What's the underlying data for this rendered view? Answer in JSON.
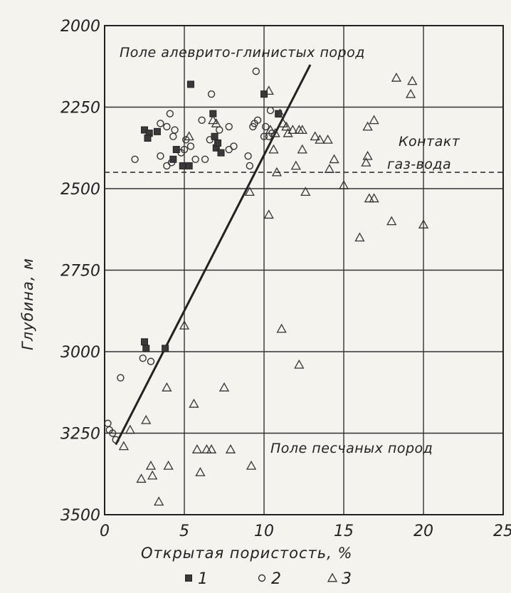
{
  "chart_data": {
    "type": "scatter",
    "title": "",
    "xlabel": "Открытая пористость, %",
    "ylabel": "Глубина, м",
    "xlim": [
      0,
      25
    ],
    "ylim": [
      3500,
      2000
    ],
    "y_inverted": true,
    "xticks": [
      0,
      5,
      10,
      15,
      20,
      25
    ],
    "yticks": [
      2000,
      2250,
      2500,
      2750,
      3000,
      3250,
      3500
    ],
    "grid": true,
    "annotations": {
      "upper_field": "Поле алеврито-глинистых пород",
      "contact_line1": "Контакт",
      "contact_line2": "газ-вода",
      "lower_field": "Поле песчаных пород"
    },
    "contact_depth": 2450,
    "trend_line": {
      "x": [
        0.7,
        12.9
      ],
      "y": [
        3285,
        2120
      ]
    },
    "legend": [
      {
        "label": "1",
        "marker": "filled-square"
      },
      {
        "label": "2",
        "marker": "open-circle"
      },
      {
        "label": "3",
        "marker": "open-triangle"
      }
    ],
    "series": [
      {
        "name": "1",
        "marker": "filled-square",
        "points": [
          [
            5.4,
            2180
          ],
          [
            2.5,
            2320
          ],
          [
            2.8,
            2330
          ],
          [
            3.3,
            2325
          ],
          [
            2.7,
            2345
          ],
          [
            4.5,
            2380
          ],
          [
            4.3,
            2410
          ],
          [
            4.9,
            2430
          ],
          [
            5.3,
            2430
          ],
          [
            6.8,
            2270
          ],
          [
            6.9,
            2340
          ],
          [
            7.0,
            2375
          ],
          [
            7.3,
            2390
          ],
          [
            7.1,
            2360
          ],
          [
            10.0,
            2210
          ],
          [
            10.9,
            2270
          ],
          [
            2.5,
            2970
          ],
          [
            2.6,
            2990
          ],
          [
            3.8,
            2990
          ]
        ]
      },
      {
        "name": "2",
        "marker": "open-circle",
        "points": [
          [
            9.5,
            2140
          ],
          [
            6.7,
            2210
          ],
          [
            3.5,
            2300
          ],
          [
            4.1,
            2270
          ],
          [
            3.9,
            2310
          ],
          [
            4.3,
            2340
          ],
          [
            4.4,
            2320
          ],
          [
            3.5,
            2400
          ],
          [
            3.9,
            2430
          ],
          [
            4.2,
            2420
          ],
          [
            4.8,
            2390
          ],
          [
            5.0,
            2380
          ],
          [
            5.4,
            2370
          ],
          [
            5.1,
            2350
          ],
          [
            5.7,
            2410
          ],
          [
            6.3,
            2410
          ],
          [
            6.1,
            2290
          ],
          [
            6.6,
            2350
          ],
          [
            7.2,
            2320
          ],
          [
            7.8,
            2380
          ],
          [
            8.1,
            2370
          ],
          [
            7.8,
            2310
          ],
          [
            5.2,
            2430
          ],
          [
            9.0,
            2400
          ],
          [
            9.1,
            2430
          ],
          [
            9.3,
            2310
          ],
          [
            9.4,
            2300
          ],
          [
            9.6,
            2290
          ],
          [
            10.1,
            2310
          ],
          [
            10.3,
            2340
          ],
          [
            10.5,
            2330
          ],
          [
            10.4,
            2260
          ],
          [
            10.0,
            2340
          ],
          [
            1.9,
            2410
          ],
          [
            1.0,
            3080
          ],
          [
            2.4,
            3020
          ],
          [
            2.9,
            3030
          ],
          [
            0.2,
            3220
          ],
          [
            0.3,
            3240
          ],
          [
            0.5,
            3250
          ],
          [
            0.7,
            3270
          ]
        ]
      },
      {
        "name": "3",
        "marker": "open-triangle",
        "points": [
          [
            10.3,
            2200
          ],
          [
            18.3,
            2160
          ],
          [
            19.3,
            2170
          ],
          [
            19.2,
            2210
          ],
          [
            11.0,
            2270
          ],
          [
            16.9,
            2290
          ],
          [
            16.5,
            2310
          ],
          [
            6.8,
            2290
          ],
          [
            7.0,
            2300
          ],
          [
            11.2,
            2300
          ],
          [
            11.4,
            2310
          ],
          [
            11.5,
            2330
          ],
          [
            11.8,
            2320
          ],
          [
            12.2,
            2320
          ],
          [
            12.4,
            2320
          ],
          [
            12.4,
            2380
          ],
          [
            13.2,
            2340
          ],
          [
            13.5,
            2350
          ],
          [
            14.0,
            2350
          ],
          [
            14.4,
            2410
          ],
          [
            14.1,
            2440
          ],
          [
            12.0,
            2430
          ],
          [
            10.8,
            2450
          ],
          [
            10.4,
            2320
          ],
          [
            10.7,
            2330
          ],
          [
            16.5,
            2400
          ],
          [
            16.4,
            2420
          ],
          [
            10.6,
            2380
          ],
          [
            5.3,
            2340
          ],
          [
            9.1,
            2510
          ],
          [
            15.0,
            2490
          ],
          [
            12.6,
            2510
          ],
          [
            16.6,
            2530
          ],
          [
            16.9,
            2530
          ],
          [
            18.0,
            2600
          ],
          [
            20.0,
            2610
          ],
          [
            10.3,
            2580
          ],
          [
            16.0,
            2650
          ],
          [
            5.0,
            2920
          ],
          [
            11.1,
            2930
          ],
          [
            12.2,
            3040
          ],
          [
            3.9,
            3110
          ],
          [
            7.5,
            3110
          ],
          [
            5.6,
            3160
          ],
          [
            2.6,
            3210
          ],
          [
            1.6,
            3240
          ],
          [
            1.2,
            3290
          ],
          [
            5.8,
            3300
          ],
          [
            6.4,
            3300
          ],
          [
            6.7,
            3300
          ],
          [
            7.9,
            3300
          ],
          [
            2.9,
            3350
          ],
          [
            3.0,
            3380
          ],
          [
            2.3,
            3390
          ],
          [
            4.0,
            3350
          ],
          [
            6.0,
            3370
          ],
          [
            9.2,
            3350
          ],
          [
            3.4,
            3460
          ]
        ]
      }
    ]
  }
}
